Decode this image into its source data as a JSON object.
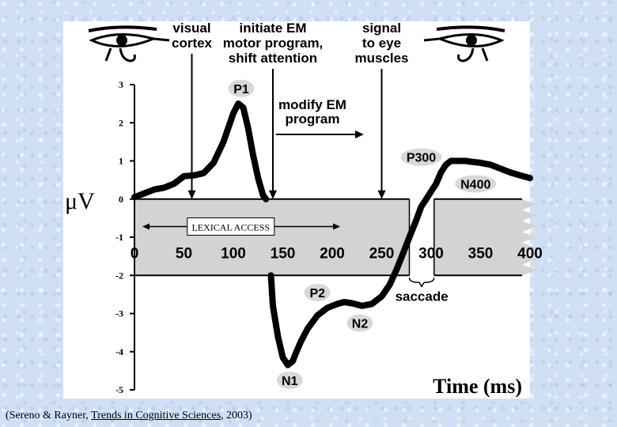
{
  "chart_data": {
    "type": "line",
    "xlabel": "Time (ms)",
    "ylabel": "μV",
    "xlim": [
      0,
      400
    ],
    "ylim": [
      -5,
      3
    ],
    "x_ticks": [
      "0",
      "50",
      "100",
      "150",
      "200",
      "250",
      "300",
      "350",
      "400"
    ],
    "y_ticks": [
      "3",
      "2",
      "1",
      "0",
      "-1",
      "-2",
      "-3",
      "-4",
      "-5"
    ],
    "series": [
      {
        "name": "",
        "segments": [
          {
            "x": [
              0,
              10,
              20,
              30,
              40,
              50,
              60,
              70,
              80,
              90,
              100,
              105,
              110,
              115,
              120,
              125,
              130,
              133
            ],
            "y": [
              0.05,
              0.15,
              0.25,
              0.3,
              0.4,
              0.6,
              0.62,
              0.68,
              0.95,
              1.5,
              2.25,
              2.5,
              2.4,
              1.85,
              1.15,
              0.55,
              0.1,
              0.0
            ]
          },
          {
            "x": [
              138,
              140,
              145,
              150,
              155,
              160,
              163,
              168,
              175,
              185,
              195,
              205,
              212,
              220,
              230,
              240,
              250,
              258,
              265,
              272,
              278,
              285,
              290,
              295,
              300,
              305
            ],
            "y": [
              -2.0,
              -2.8,
              -3.6,
              -4.15,
              -4.35,
              -4.25,
              -4.05,
              -3.75,
              -3.4,
              -3.05,
              -2.85,
              -2.75,
              -2.7,
              -2.73,
              -2.8,
              -2.75,
              -2.55,
              -2.25,
              -1.85,
              -1.4,
              -1.0,
              -0.55,
              -0.2,
              0.0,
              0.2,
              0.4
            ]
          },
          {
            "x": [
              305,
              310,
              315,
              320,
              330,
              335,
              340,
              350,
              360,
              370,
              380,
              390,
              400
            ],
            "y": [
              0.4,
              0.7,
              0.9,
              1.0,
              1.0,
              1.0,
              0.98,
              0.95,
              0.9,
              0.8,
              0.7,
              0.62,
              0.55
            ]
          }
        ]
      }
    ],
    "components": [
      {
        "label": "P1",
        "x": 108,
        "y": 2.9
      },
      {
        "label": "P300",
        "x": 290,
        "y": 1.1
      },
      {
        "label": "N400",
        "x": 345,
        "y": 0.4
      },
      {
        "label": "P2",
        "x": 185,
        "y": -2.45
      },
      {
        "label": "N2",
        "x": 228,
        "y": -3.25
      },
      {
        "label": "N1",
        "x": 157,
        "y": -4.75
      }
    ],
    "arrow_markers": [
      {
        "x": 58,
        "label_lines": [
          "visual",
          "cortex"
        ]
      },
      {
        "x": 140,
        "label_lines": [
          "initiate EM",
          "motor program,",
          "shift attention"
        ]
      },
      {
        "x": 250,
        "label_lines": [
          "signal",
          "to eye",
          "muscles"
        ]
      }
    ],
    "annotations": {
      "modify": [
        "modify EM",
        "program"
      ],
      "lexical_access": "LEXICAL ACCESS",
      "saccade": "saccade"
    }
  },
  "citation": {
    "prefix": "(Sereno & Rayner, ",
    "journal": "Trends in Cognitive Sciences",
    "suffix": ", 2003)"
  },
  "colors": {
    "band": "#d3d3d3",
    "label_bubble": "#d8d8d8",
    "curve": "#000000",
    "background": "#cfe0f5"
  },
  "icons": [
    "eye-of-horus-left-icon",
    "eye-of-horus-right-icon"
  ]
}
